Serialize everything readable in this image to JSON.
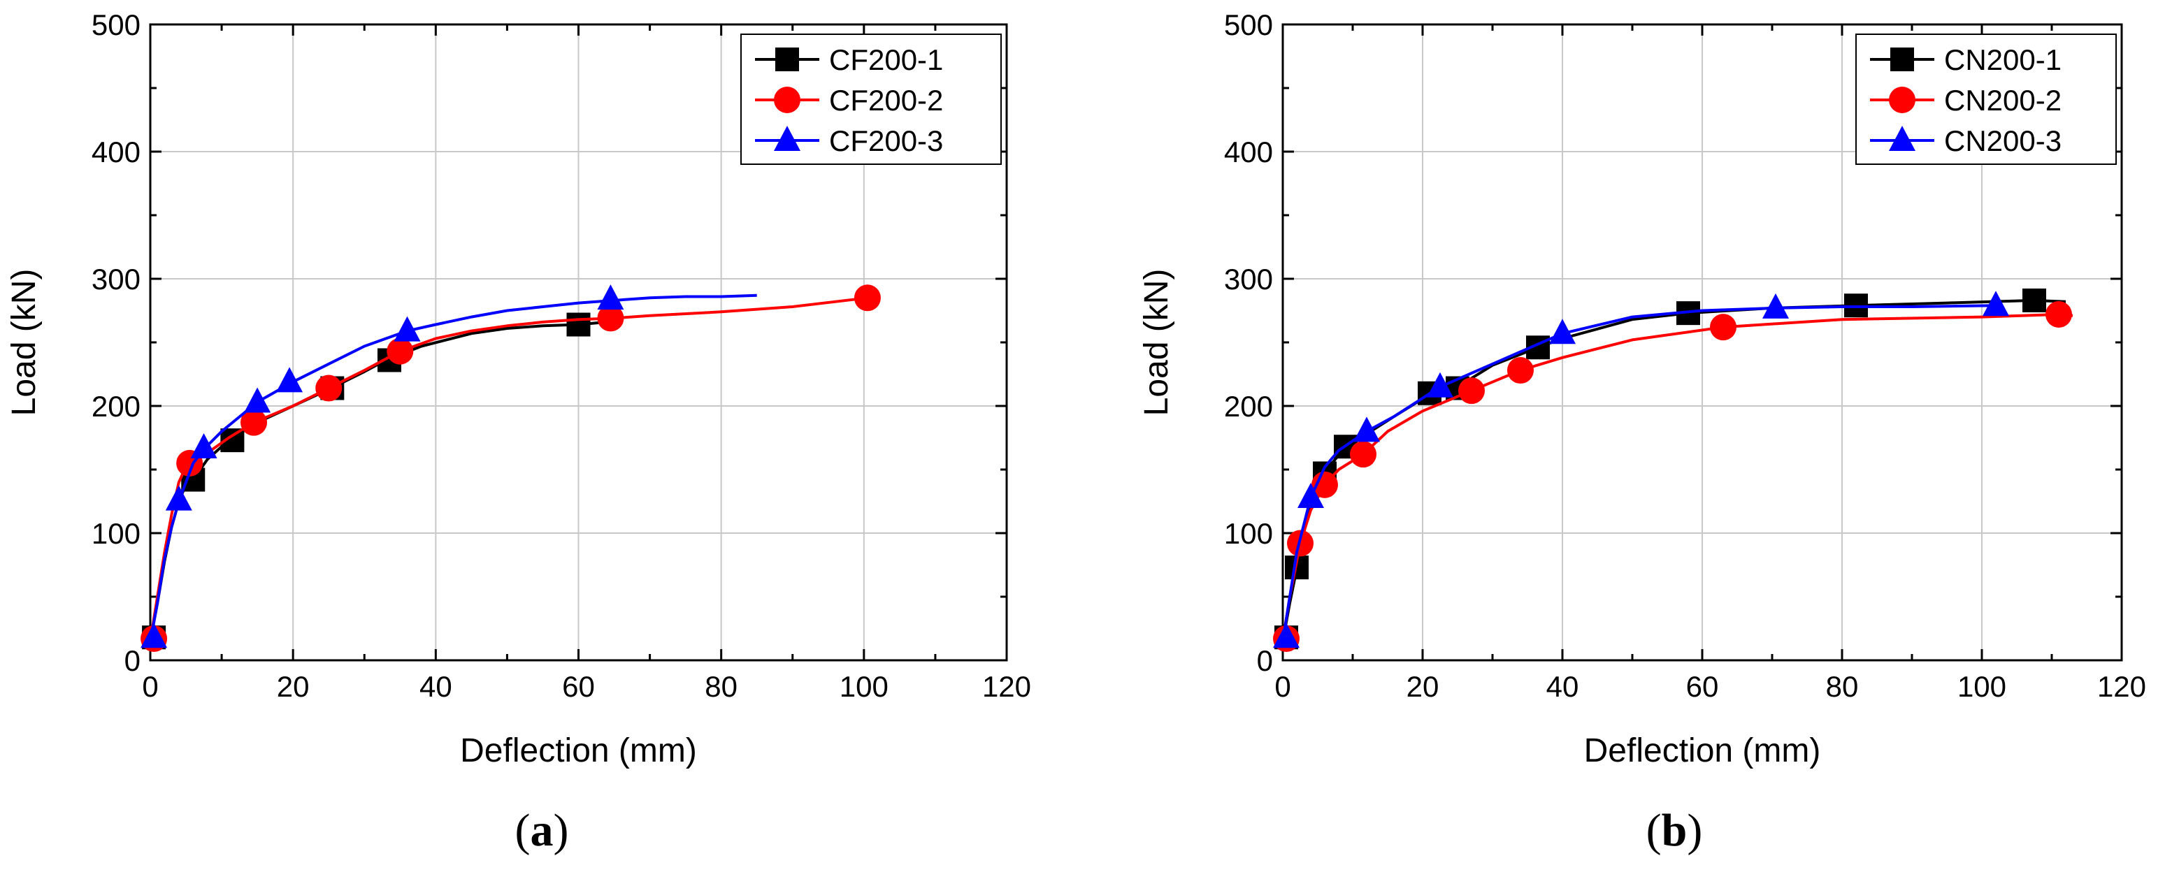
{
  "chart_data": [
    {
      "type": "line",
      "panel": "a",
      "caption": "(a)",
      "caption_letter": "a",
      "xlabel": "Deflection (mm)",
      "ylabel": "Load (kN)",
      "xlim": [
        0,
        120
      ],
      "ylim": [
        0,
        500
      ],
      "xticks": [
        0,
        20,
        40,
        60,
        80,
        100,
        120
      ],
      "yticks": [
        0,
        100,
        200,
        300,
        400,
        500
      ],
      "grid": true,
      "legend_position": "top-right",
      "series": [
        {
          "name": "CF200-1",
          "color": "#000000",
          "marker": "square",
          "x": [
            0,
            1,
            2,
            3,
            4,
            5,
            6,
            8,
            11,
            15,
            20,
            25,
            30,
            33,
            38,
            45,
            50,
            55,
            60,
            64
          ],
          "y": [
            15,
            45,
            78,
            105,
            125,
            138,
            142,
            158,
            173,
            187,
            200,
            213,
            227,
            236,
            247,
            257,
            261,
            263,
            264,
            266
          ],
          "markers_x": [
            0.5,
            6,
            11.5,
            25.5,
            33.5,
            60
          ],
          "markers_y": [
            18,
            142,
            173,
            214,
            236,
            264
          ]
        },
        {
          "name": "CF200-2",
          "color": "#ff0000",
          "marker": "circle",
          "x": [
            0,
            1,
            2,
            3,
            4,
            5,
            5.5,
            8,
            11,
            14.5,
            20,
            25,
            30,
            35,
            40,
            45,
            50,
            55,
            60,
            65,
            70,
            80,
            90,
            100.5
          ],
          "y": [
            15,
            50,
            85,
            115,
            140,
            152,
            155,
            163,
            175,
            187,
            200,
            214,
            228,
            243,
            253,
            259,
            263,
            266,
            268,
            269,
            271,
            274,
            278,
            285
          ],
          "markers_x": [
            0.5,
            5.5,
            14.5,
            25,
            35,
            64.5,
            100.5
          ],
          "markers_y": [
            17,
            155,
            187,
            214,
            243,
            269,
            285
          ]
        },
        {
          "name": "CF200-3",
          "color": "#0000ff",
          "marker": "triangle",
          "x": [
            0,
            1,
            2,
            3,
            4,
            5,
            6,
            7.5,
            10,
            15,
            20,
            25,
            30,
            36,
            40,
            45,
            50,
            55,
            60,
            65,
            70,
            75,
            80,
            85
          ],
          "y": [
            15,
            45,
            80,
            105,
            125,
            140,
            155,
            166,
            180,
            203,
            219,
            233,
            247,
            259,
            264,
            270,
            275,
            278,
            281,
            283,
            285,
            286,
            286,
            287
          ],
          "markers_x": [
            0.5,
            4,
            7.5,
            15,
            19.5,
            36,
            64.5
          ],
          "markers_y": [
            18,
            126,
            167,
            203,
            219,
            259,
            284
          ]
        }
      ]
    },
    {
      "type": "line",
      "panel": "b",
      "caption": "(b)",
      "caption_letter": "b",
      "xlabel": "Deflection (mm)",
      "ylabel": "Load (kN)",
      "xlim": [
        0,
        120
      ],
      "ylim": [
        0,
        500
      ],
      "xticks": [
        0,
        20,
        40,
        60,
        80,
        100,
        120
      ],
      "yticks": [
        0,
        100,
        200,
        300,
        400,
        500
      ],
      "grid": true,
      "legend_position": "top-right",
      "series": [
        {
          "name": "CN200-1",
          "color": "#000000",
          "marker": "square",
          "x": [
            0,
            1,
            2,
            3,
            4,
            5,
            6,
            9,
            12,
            16,
            21,
            25,
            30,
            36.5,
            40,
            50,
            58,
            70,
            82,
            95,
            107.5,
            112
          ],
          "y": [
            15,
            45,
            72,
            100,
            125,
            140,
            148,
            168,
            178,
            192,
            209,
            215,
            232,
            246,
            253,
            268,
            273,
            277,
            279,
            281,
            283,
            282
          ],
          "markers_x": [
            0.5,
            2,
            6,
            9,
            21,
            25,
            36.5,
            58,
            82,
            107.5
          ],
          "markers_y": [
            18,
            73,
            147,
            168,
            210,
            214,
            246,
            273,
            279,
            283
          ]
        },
        {
          "name": "CN200-2",
          "color": "#ff0000",
          "marker": "circle",
          "x": [
            0,
            1,
            2.5,
            4,
            6,
            8,
            11.5,
            15,
            20,
            27,
            34,
            40,
            50,
            63,
            80,
            100,
            111,
            113
          ],
          "y": [
            15,
            50,
            92,
            118,
            138,
            150,
            162,
            180,
            196,
            212,
            228,
            238,
            252,
            262,
            268,
            270,
            272,
            271
          ],
          "markers_x": [
            0.5,
            2.5,
            6,
            11.5,
            27,
            34,
            63,
            111
          ],
          "markers_y": [
            17,
            92,
            138,
            162,
            212,
            228,
            262,
            272
          ]
        },
        {
          "name": "CN200-3",
          "color": "#0000ff",
          "marker": "triangle",
          "x": [
            0,
            1,
            2,
            4,
            6,
            8,
            12,
            16,
            22.5,
            30,
            40,
            50,
            60,
            70.5,
            80,
            90,
            102
          ],
          "y": [
            15,
            50,
            85,
            128,
            152,
            165,
            180,
            192,
            215,
            233,
            257,
            270,
            275,
            277,
            278,
            278,
            279
          ],
          "markers_x": [
            0.5,
            4,
            12,
            22.5,
            40,
            70.5,
            102
          ],
          "markers_y": [
            18,
            128,
            180,
            215,
            257,
            277,
            279
          ]
        }
      ]
    }
  ]
}
